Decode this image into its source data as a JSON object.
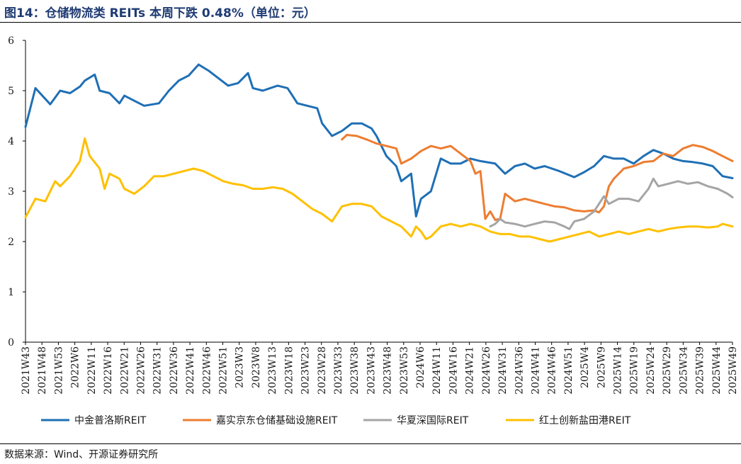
{
  "header": {
    "title": "图14：仓储物流类 REITs 本周下跌 0.48%（单位：元）"
  },
  "footer": {
    "source": "数据来源：Wind、开源证券研究所"
  },
  "chart_data": {
    "type": "line",
    "title": "",
    "xlabel": "",
    "ylabel": "",
    "ylim": [
      0,
      6
    ],
    "yticks": [
      0,
      1,
      2,
      3,
      4,
      5,
      6
    ],
    "grid": false,
    "legend_position": "bottom",
    "x_tick_labels": [
      "2021W43",
      "2021W48",
      "2021W53",
      "2022W6",
      "2022W11",
      "2022W16",
      "2022W21",
      "2022W26",
      "2022W31",
      "2022W36",
      "2022W41",
      "2022W46",
      "2022W51",
      "2023W3",
      "2023W8",
      "2023W13",
      "2023W18",
      "2023W23",
      "2023W28",
      "2023W33",
      "2023W38",
      "2023W43",
      "2023W48",
      "2023W53",
      "2024W6",
      "2024W11",
      "2024W16",
      "2024W21",
      "2024W26",
      "2024W31",
      "2024W36",
      "2024W41",
      "2024W46",
      "2024W51",
      "2025W4",
      "2025W9",
      "2025W14",
      "2025W19",
      "2025W24",
      "2025W29",
      "2025W34",
      "2025W39",
      "2025W44",
      "2025W49"
    ],
    "series": [
      {
        "name": "中金普洛斯REIT",
        "color": "#1f6fb5",
        "points": [
          [
            0,
            4.28
          ],
          [
            2,
            5.05
          ],
          [
            5,
            4.73
          ],
          [
            7,
            5.0
          ],
          [
            9,
            4.95
          ],
          [
            11,
            5.08
          ],
          [
            12,
            5.2
          ],
          [
            14,
            5.32
          ],
          [
            15,
            5.0
          ],
          [
            17,
            4.95
          ],
          [
            19,
            4.75
          ],
          [
            20,
            4.9
          ],
          [
            22,
            4.8
          ],
          [
            24,
            4.7
          ],
          [
            27,
            4.75
          ],
          [
            29,
            5.0
          ],
          [
            31,
            5.2
          ],
          [
            33,
            5.3
          ],
          [
            35,
            5.52
          ],
          [
            37,
            5.4
          ],
          [
            39,
            5.25
          ],
          [
            41,
            5.1
          ],
          [
            43,
            5.15
          ],
          [
            45,
            5.35
          ],
          [
            46,
            5.05
          ],
          [
            48,
            5.0
          ],
          [
            51,
            5.1
          ],
          [
            53,
            5.05
          ],
          [
            55,
            4.75
          ],
          [
            57,
            4.7
          ],
          [
            59,
            4.65
          ],
          [
            60,
            4.35
          ],
          [
            62,
            4.1
          ],
          [
            64,
            4.2
          ],
          [
            66,
            4.35
          ],
          [
            68,
            4.35
          ],
          [
            70,
            4.25
          ],
          [
            71,
            4.1
          ],
          [
            73,
            3.7
          ],
          [
            75,
            3.5
          ],
          [
            76,
            3.2
          ],
          [
            78,
            3.35
          ],
          [
            79,
            2.5
          ],
          [
            80,
            2.85
          ],
          [
            82,
            3.0
          ],
          [
            84,
            3.65
          ],
          [
            86,
            3.55
          ],
          [
            88,
            3.55
          ],
          [
            90,
            3.65
          ],
          [
            92,
            3.6
          ],
          [
            95,
            3.55
          ],
          [
            97,
            3.35
          ],
          [
            99,
            3.5
          ],
          [
            101,
            3.55
          ],
          [
            103,
            3.45
          ],
          [
            105,
            3.5
          ],
          [
            108,
            3.4
          ],
          [
            111,
            3.28
          ],
          [
            113,
            3.38
          ],
          [
            115,
            3.5
          ],
          [
            117,
            3.7
          ],
          [
            119,
            3.65
          ],
          [
            121,
            3.65
          ],
          [
            123,
            3.55
          ],
          [
            125,
            3.7
          ],
          [
            127,
            3.82
          ],
          [
            129,
            3.75
          ],
          [
            131,
            3.65
          ],
          [
            133,
            3.6
          ],
          [
            135,
            3.58
          ],
          [
            137,
            3.55
          ],
          [
            139,
            3.5
          ],
          [
            141,
            3.3
          ],
          [
            143,
            3.26
          ]
        ]
      },
      {
        "name": "嘉实京东仓储基础设施REIT",
        "color": "#ed7d31",
        "points": [
          [
            64,
            4.03
          ],
          [
            65,
            4.12
          ],
          [
            67,
            4.1
          ],
          [
            69,
            4.03
          ],
          [
            71,
            3.95
          ],
          [
            73,
            3.9
          ],
          [
            75,
            3.85
          ],
          [
            76,
            3.55
          ],
          [
            78,
            3.65
          ],
          [
            80,
            3.8
          ],
          [
            82,
            3.9
          ],
          [
            84,
            3.85
          ],
          [
            86,
            3.9
          ],
          [
            88,
            3.75
          ],
          [
            90,
            3.6
          ],
          [
            91,
            3.35
          ],
          [
            92,
            3.4
          ],
          [
            93,
            2.45
          ],
          [
            94,
            2.6
          ],
          [
            95,
            2.43
          ],
          [
            96,
            2.45
          ],
          [
            97,
            2.95
          ],
          [
            99,
            2.8
          ],
          [
            101,
            2.85
          ],
          [
            103,
            2.8
          ],
          [
            105,
            2.75
          ],
          [
            107,
            2.7
          ],
          [
            109,
            2.68
          ],
          [
            111,
            2.62
          ],
          [
            113,
            2.6
          ],
          [
            115,
            2.62
          ],
          [
            116,
            2.58
          ],
          [
            117,
            2.7
          ],
          [
            118,
            3.1
          ],
          [
            119,
            3.25
          ],
          [
            121,
            3.45
          ],
          [
            123,
            3.5
          ],
          [
            125,
            3.58
          ],
          [
            127,
            3.6
          ],
          [
            129,
            3.75
          ],
          [
            131,
            3.7
          ],
          [
            133,
            3.85
          ],
          [
            135,
            3.92
          ],
          [
            137,
            3.88
          ],
          [
            139,
            3.8
          ],
          [
            141,
            3.7
          ],
          [
            143,
            3.6
          ]
        ]
      },
      {
        "name": "华夏深国际REIT",
        "color": "#a5a5a5",
        "points": [
          [
            94,
            2.3
          ],
          [
            95,
            2.35
          ],
          [
            96,
            2.45
          ],
          [
            97,
            2.38
          ],
          [
            99,
            2.35
          ],
          [
            101,
            2.3
          ],
          [
            103,
            2.35
          ],
          [
            105,
            2.4
          ],
          [
            107,
            2.38
          ],
          [
            109,
            2.3
          ],
          [
            110,
            2.25
          ],
          [
            111,
            2.4
          ],
          [
            113,
            2.45
          ],
          [
            115,
            2.6
          ],
          [
            117,
            2.9
          ],
          [
            118,
            2.75
          ],
          [
            120,
            2.85
          ],
          [
            122,
            2.85
          ],
          [
            124,
            2.8
          ],
          [
            126,
            3.05
          ],
          [
            127,
            3.25
          ],
          [
            128,
            3.1
          ],
          [
            130,
            3.15
          ],
          [
            132,
            3.2
          ],
          [
            134,
            3.15
          ],
          [
            136,
            3.18
          ],
          [
            138,
            3.1
          ],
          [
            140,
            3.05
          ],
          [
            142,
            2.95
          ],
          [
            143,
            2.88
          ]
        ]
      },
      {
        "name": "红土创新盐田港REIT",
        "color": "#ffc000",
        "points": [
          [
            0,
            2.48
          ],
          [
            2,
            2.85
          ],
          [
            4,
            2.8
          ],
          [
            6,
            3.2
          ],
          [
            7,
            3.1
          ],
          [
            9,
            3.3
          ],
          [
            11,
            3.6
          ],
          [
            12,
            4.05
          ],
          [
            13,
            3.7
          ],
          [
            15,
            3.45
          ],
          [
            16,
            3.05
          ],
          [
            17,
            3.35
          ],
          [
            19,
            3.25
          ],
          [
            20,
            3.05
          ],
          [
            22,
            2.95
          ],
          [
            24,
            3.1
          ],
          [
            26,
            3.3
          ],
          [
            28,
            3.3
          ],
          [
            30,
            3.35
          ],
          [
            32,
            3.4
          ],
          [
            34,
            3.45
          ],
          [
            36,
            3.4
          ],
          [
            38,
            3.3
          ],
          [
            40,
            3.2
          ],
          [
            42,
            3.15
          ],
          [
            44,
            3.12
          ],
          [
            46,
            3.05
          ],
          [
            48,
            3.05
          ],
          [
            50,
            3.08
          ],
          [
            52,
            3.05
          ],
          [
            54,
            2.95
          ],
          [
            56,
            2.8
          ],
          [
            58,
            2.65
          ],
          [
            60,
            2.55
          ],
          [
            62,
            2.4
          ],
          [
            64,
            2.7
          ],
          [
            66,
            2.75
          ],
          [
            68,
            2.75
          ],
          [
            70,
            2.7
          ],
          [
            72,
            2.5
          ],
          [
            74,
            2.4
          ],
          [
            76,
            2.3
          ],
          [
            78,
            2.1
          ],
          [
            79,
            2.3
          ],
          [
            80,
            2.2
          ],
          [
            81,
            2.05
          ],
          [
            82,
            2.1
          ],
          [
            84,
            2.3
          ],
          [
            86,
            2.35
          ],
          [
            88,
            2.3
          ],
          [
            90,
            2.35
          ],
          [
            92,
            2.3
          ],
          [
            94,
            2.2
          ],
          [
            96,
            2.15
          ],
          [
            98,
            2.15
          ],
          [
            100,
            2.1
          ],
          [
            102,
            2.1
          ],
          [
            104,
            2.05
          ],
          [
            106,
            2.0
          ],
          [
            108,
            2.05
          ],
          [
            110,
            2.1
          ],
          [
            112,
            2.15
          ],
          [
            114,
            2.2
          ],
          [
            116,
            2.1
          ],
          [
            118,
            2.15
          ],
          [
            120,
            2.2
          ],
          [
            122,
            2.15
          ],
          [
            124,
            2.2
          ],
          [
            126,
            2.25
          ],
          [
            128,
            2.2
          ],
          [
            130,
            2.25
          ],
          [
            132,
            2.28
          ],
          [
            134,
            2.3
          ],
          [
            136,
            2.3
          ],
          [
            138,
            2.28
          ],
          [
            140,
            2.3
          ],
          [
            141,
            2.35
          ],
          [
            143,
            2.3
          ]
        ]
      }
    ]
  }
}
